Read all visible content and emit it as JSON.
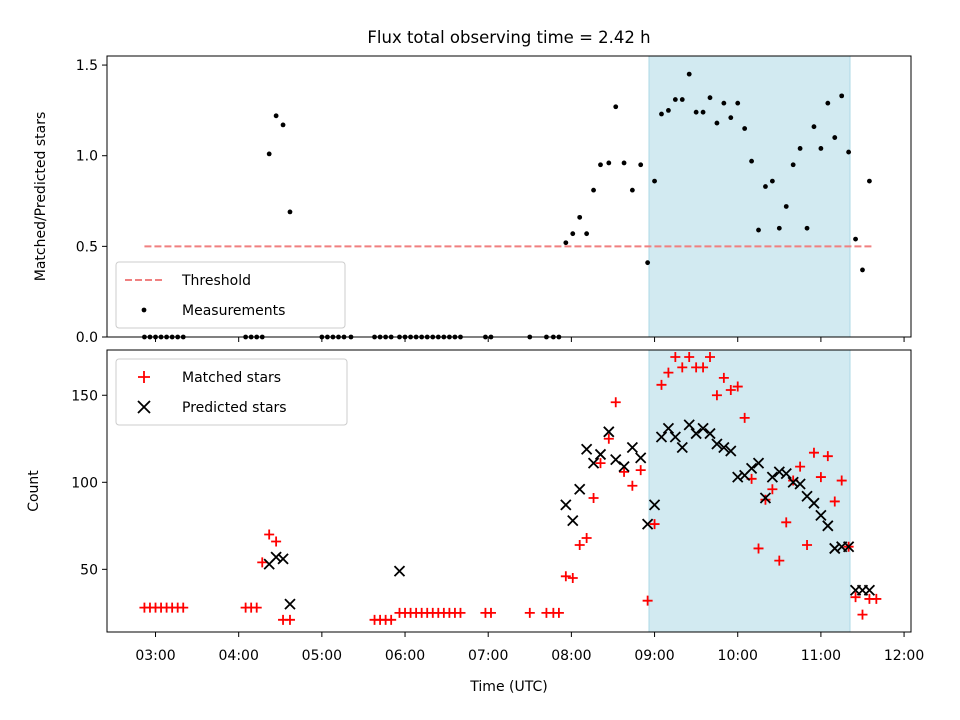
{
  "title": "Flux total observing time = 2.42 h",
  "xlabel": "Time (UTC)",
  "colors": {
    "highlight": "#add8e6",
    "threshold": "#f08080",
    "measurements": "#000000",
    "matched": "#ff0000",
    "predicted": "#000000"
  },
  "chart_data": [
    {
      "type": "scatter",
      "ylabel": "Matched/Predicted stars",
      "ylim": [
        0,
        1.55
      ],
      "xlim": [
        "02:25",
        "12:05"
      ],
      "yticks": [
        0.0,
        0.5,
        1.0,
        1.5
      ],
      "yticklabels": [
        "0.0",
        "0.5",
        "1.0",
        "1.5"
      ],
      "highlight_span": [
        "08:56",
        "11:21"
      ],
      "legend": {
        "location": "lower-left",
        "entries": [
          "Threshold",
          "Measurements"
        ]
      },
      "threshold": {
        "name": "Threshold",
        "value": 0.5,
        "x": [
          "02:52",
          "11:38"
        ]
      },
      "series": [
        {
          "name": "Measurements",
          "x": [
            "02:52",
            "02:56",
            "03:00",
            "03:04",
            "03:08",
            "03:12",
            "03:16",
            "03:20",
            "04:05",
            "04:09",
            "04:13",
            "04:17",
            "04:22",
            "04:27",
            "04:32",
            "04:37",
            "05:00",
            "05:04",
            "05:08",
            "05:12",
            "05:16",
            "05:21",
            "05:38",
            "05:42",
            "05:46",
            "05:50",
            "05:56",
            "06:00",
            "06:04",
            "06:08",
            "06:12",
            "06:16",
            "06:20",
            "06:24",
            "06:28",
            "06:32",
            "06:36",
            "06:40",
            "06:58",
            "07:02",
            "07:30",
            "07:42",
            "07:47",
            "07:51",
            "07:56",
            "08:01",
            "08:06",
            "08:11",
            "08:16",
            "08:21",
            "08:27",
            "08:32",
            "08:38",
            "08:44",
            "08:50",
            "08:55",
            "09:00",
            "09:05",
            "09:10",
            "09:15",
            "09:20",
            "09:25",
            "09:30",
            "09:35",
            "09:40",
            "09:45",
            "09:50",
            "09:55",
            "10:00",
            "10:05",
            "10:10",
            "10:15",
            "10:20",
            "10:25",
            "10:30",
            "10:35",
            "10:40",
            "10:45",
            "10:50",
            "10:55",
            "11:00",
            "11:05",
            "11:10",
            "11:15",
            "11:20",
            "11:25",
            "11:30",
            "11:35"
          ],
          "y": [
            0.0,
            0.0,
            0.0,
            0.0,
            0.0,
            0.0,
            0.0,
            0.0,
            0.0,
            0.0,
            0.0,
            0.0,
            1.01,
            1.22,
            1.17,
            0.69,
            0.0,
            0.0,
            0.0,
            0.0,
            0.0,
            0.0,
            0.0,
            0.0,
            0.0,
            0.0,
            0.0,
            0.0,
            0.0,
            0.0,
            0.0,
            0.0,
            0.0,
            0.0,
            0.0,
            0.0,
            0.0,
            0.0,
            0.0,
            0.0,
            0.0,
            0.0,
            0.0,
            0.0,
            0.52,
            0.57,
            0.66,
            0.57,
            0.81,
            0.95,
            0.96,
            1.27,
            0.96,
            0.81,
            0.95,
            0.41,
            0.86,
            1.23,
            1.25,
            1.31,
            1.31,
            1.45,
            1.24,
            1.24,
            1.32,
            1.18,
            1.29,
            1.21,
            1.29,
            1.15,
            0.97,
            0.59,
            0.83,
            0.86,
            0.6,
            0.72,
            0.95,
            1.04,
            0.6,
            1.16,
            1.04,
            1.29,
            1.1,
            1.33,
            1.02,
            0.54,
            0.37,
            0.86
          ]
        }
      ]
    },
    {
      "type": "scatter",
      "ylabel": "Count",
      "ylim": [
        14,
        176
      ],
      "xlim": [
        "02:25",
        "12:05"
      ],
      "yticks": [
        50,
        100,
        150
      ],
      "yticklabels": [
        "50",
        "100",
        "150"
      ],
      "xticks": [
        "03:00",
        "04:00",
        "05:00",
        "06:00",
        "07:00",
        "08:00",
        "09:00",
        "10:00",
        "11:00",
        "12:00"
      ],
      "highlight_span": [
        "08:56",
        "11:21"
      ],
      "legend": {
        "location": "upper-left",
        "entries": [
          "Matched stars",
          "Predicted stars"
        ]
      },
      "series": [
        {
          "name": "Matched stars",
          "marker": "plus",
          "x": [
            "02:52",
            "02:56",
            "03:00",
            "03:04",
            "03:08",
            "03:12",
            "03:16",
            "03:20",
            "04:05",
            "04:09",
            "04:13",
            "04:17",
            "04:22",
            "04:27",
            "04:32",
            "04:37",
            "05:38",
            "05:42",
            "05:46",
            "05:50",
            "05:56",
            "06:00",
            "06:04",
            "06:08",
            "06:12",
            "06:16",
            "06:20",
            "06:24",
            "06:28",
            "06:32",
            "06:36",
            "06:40",
            "06:58",
            "07:02",
            "07:30",
            "07:42",
            "07:47",
            "07:51",
            "07:56",
            "08:01",
            "08:06",
            "08:11",
            "08:16",
            "08:21",
            "08:27",
            "08:32",
            "08:38",
            "08:44",
            "08:50",
            "08:55",
            "09:00",
            "09:05",
            "09:10",
            "09:15",
            "09:20",
            "09:25",
            "09:30",
            "09:35",
            "09:40",
            "09:45",
            "09:50",
            "09:55",
            "10:00",
            "10:05",
            "10:10",
            "10:15",
            "10:20",
            "10:25",
            "10:30",
            "10:35",
            "10:40",
            "10:45",
            "10:50",
            "10:55",
            "11:00",
            "11:05",
            "11:10",
            "11:15",
            "11:20",
            "11:25",
            "11:30",
            "11:35",
            "11:40"
          ],
          "y": [
            28,
            28,
            28,
            28,
            28,
            28,
            28,
            28,
            28,
            28,
            28,
            54,
            70,
            66,
            21,
            21,
            21,
            21,
            21,
            21,
            25,
            25,
            25,
            25,
            25,
            25,
            25,
            25,
            25,
            25,
            25,
            25,
            25,
            25,
            25,
            25,
            25,
            25,
            46,
            45,
            64,
            68,
            91,
            111,
            125,
            146,
            106,
            98,
            107,
            32,
            76,
            156,
            163,
            172,
            166,
            172,
            166,
            166,
            172,
            150,
            160,
            153,
            155,
            137,
            102,
            62,
            90,
            96,
            55,
            77,
            101,
            109,
            64,
            117,
            103,
            115,
            89,
            101,
            63,
            34,
            24,
            33,
            33
          ]
        },
        {
          "name": "Predicted stars",
          "marker": "x",
          "x": [
            "04:22",
            "04:27",
            "04:32",
            "04:37",
            "05:56",
            "07:56",
            "08:01",
            "08:06",
            "08:11",
            "08:16",
            "08:21",
            "08:27",
            "08:32",
            "08:38",
            "08:44",
            "08:50",
            "08:55",
            "09:00",
            "09:05",
            "09:10",
            "09:15",
            "09:20",
            "09:25",
            "09:30",
            "09:35",
            "09:40",
            "09:45",
            "09:50",
            "09:55",
            "10:00",
            "10:05",
            "10:10",
            "10:15",
            "10:20",
            "10:25",
            "10:30",
            "10:35",
            "10:40",
            "10:45",
            "10:50",
            "10:55",
            "11:00",
            "11:05",
            "11:10",
            "11:15",
            "11:20",
            "11:25",
            "11:30",
            "11:35"
          ],
          "y": [
            53,
            57,
            56,
            30,
            49,
            87,
            78,
            96,
            119,
            111,
            116,
            129,
            113,
            109,
            120,
            114,
            76,
            87,
            126,
            131,
            126,
            120,
            133,
            128,
            131,
            128,
            122,
            120,
            118,
            103,
            104,
            108,
            111,
            91,
            103,
            106,
            105,
            100,
            99,
            92,
            88,
            81,
            75,
            62,
            63,
            63,
            38,
            38,
            38
          ]
        }
      ]
    }
  ]
}
